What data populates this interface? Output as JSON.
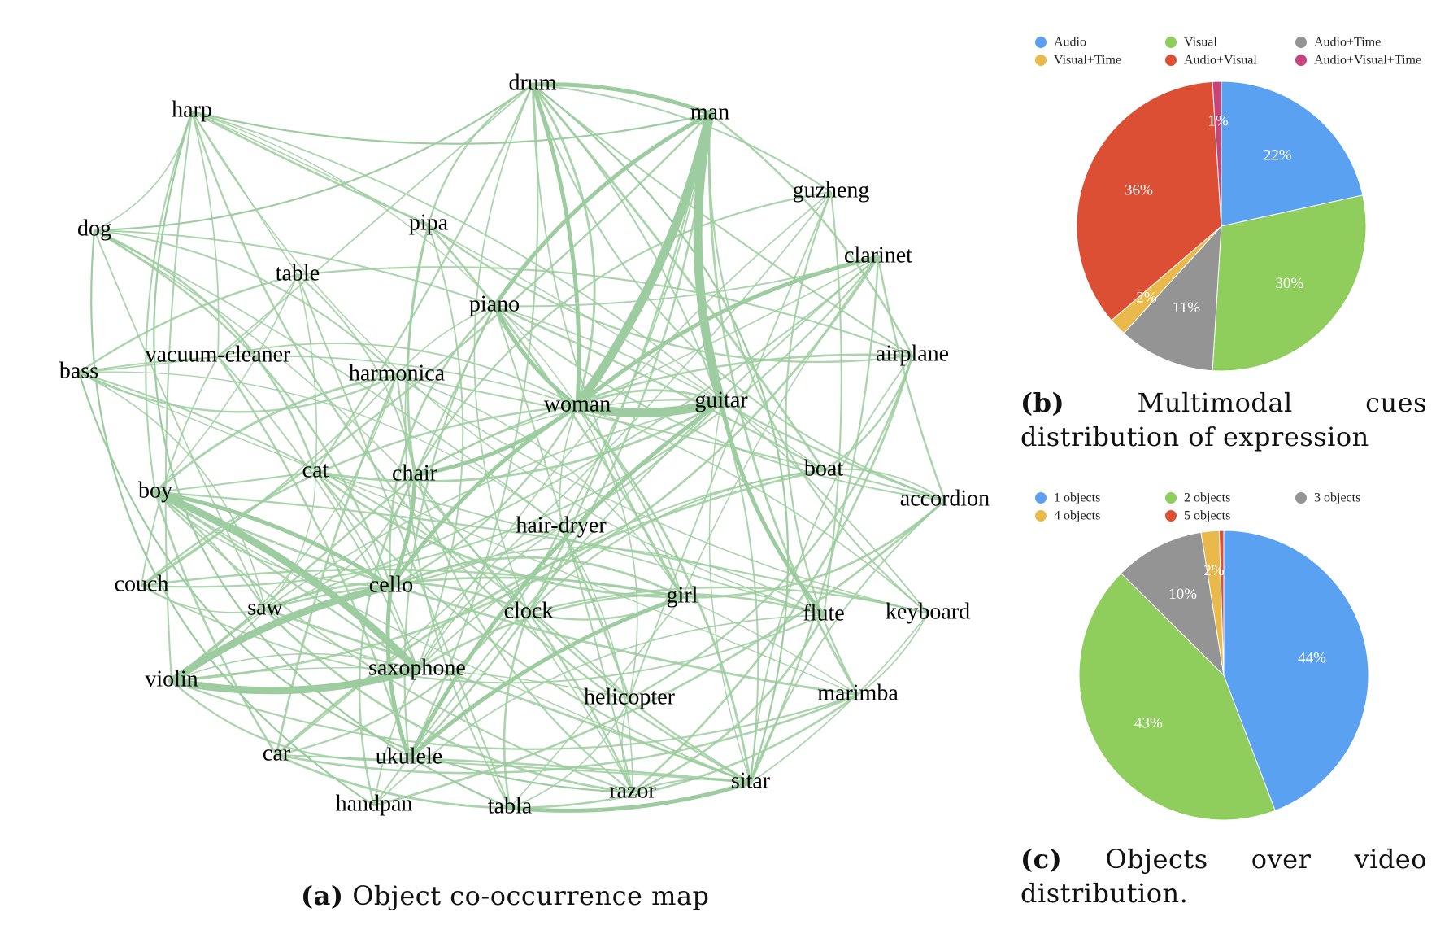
{
  "network": {
    "nodes": [
      "drum",
      "man",
      "harp",
      "guzheng",
      "dog",
      "pipa",
      "clarinet",
      "table",
      "piano",
      "bass",
      "vacuum-cleaner",
      "harmonica",
      "airplane",
      "woman",
      "guitar",
      "boat",
      "cat",
      "chair",
      "boy",
      "accordion",
      "hair-dryer",
      "couch",
      "cello",
      "girl",
      "saw",
      "clock",
      "flute",
      "keyboard",
      "violin",
      "saxophone",
      "helicopter",
      "marimba",
      "car",
      "ukulele",
      "sitar",
      "handpan",
      "tabla",
      "razor"
    ],
    "strong_edges": [
      [
        "man",
        "guitar"
      ],
      [
        "man",
        "woman"
      ],
      [
        "woman",
        "guitar"
      ],
      [
        "violin",
        "cello"
      ],
      [
        "violin",
        "saxophone"
      ],
      [
        "boy",
        "saxophone"
      ],
      [
        "cello",
        "ukulele"
      ],
      [
        "ukulele",
        "girl"
      ],
      [
        "guitar",
        "ukulele"
      ],
      [
        "sitar",
        "tabla"
      ],
      [
        "piano",
        "woman"
      ],
      [
        "drum",
        "man"
      ],
      [
        "clarinet",
        "woman"
      ],
      [
        "drum",
        "woman"
      ],
      [
        "man",
        "piano"
      ],
      [
        "cello",
        "woman"
      ],
      [
        "chair",
        "woman"
      ],
      [
        "boy",
        "cello"
      ],
      [
        "guitar",
        "flute"
      ],
      [
        "chair",
        "cello"
      ]
    ]
  },
  "chart_data": [
    {
      "type": "pie",
      "title": "",
      "legend": [
        "Audio",
        "Visual",
        "Audio+Time",
        "Visual+Time",
        "Audio+Visual",
        "Audio+Visual+Time"
      ],
      "slices": [
        {
          "name": "Audio",
          "value": 22,
          "label": "22%",
          "color": "#5ba1f1"
        },
        {
          "name": "Visual",
          "value": 30,
          "label": "30%",
          "color": "#8fcd5c"
        },
        {
          "name": "Audio+Time",
          "value": 11,
          "label": "11%",
          "color": "#949494"
        },
        {
          "name": "Visual+Time",
          "value": 2,
          "label": "2%",
          "color": "#eab94c"
        },
        {
          "name": "Audio+Visual",
          "value": 36,
          "label": "36%",
          "color": "#dc4f34"
        },
        {
          "name": "Audio+Visual+Time",
          "value": 1,
          "label": "1%",
          "color": "#c8437a"
        }
      ]
    },
    {
      "type": "pie",
      "title": "",
      "legend": [
        "1 objects",
        "2 objects",
        "3 objects",
        "4 objects",
        "5 objects"
      ],
      "slices": [
        {
          "name": "1 objects",
          "value": 44,
          "label": "44%",
          "color": "#5ba1f1"
        },
        {
          "name": "2 objects",
          "value": 43,
          "label": "43%",
          "color": "#8fcd5c"
        },
        {
          "name": "3 objects",
          "value": 10,
          "label": "10%",
          "color": "#949494"
        },
        {
          "name": "4 objects",
          "value": 2,
          "label": "2%",
          "color": "#eab94c"
        },
        {
          "name": "5 objects",
          "value": 0.5,
          "label": "",
          "color": "#dc4f34"
        }
      ]
    }
  ],
  "captions": {
    "a_tag": "(a)",
    "a_text": "Object co-occurrence map",
    "b_tag": "(b)",
    "b_text": "Multimodal cues distribution of expression",
    "c_tag": "(c)",
    "c_text": "Objects over video distribution."
  },
  "colors": {
    "edge": "#9ccc9f"
  }
}
